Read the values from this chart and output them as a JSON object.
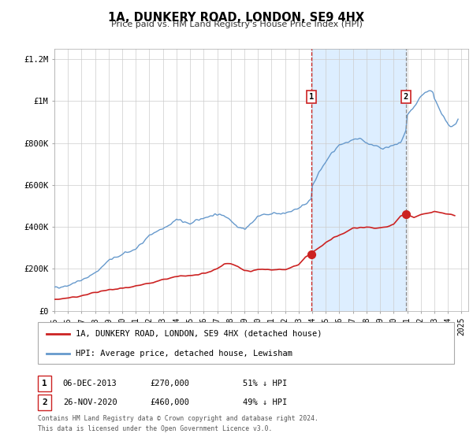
{
  "title": "1A, DUNKERY ROAD, LONDON, SE9 4HX",
  "subtitle": "Price paid vs. HM Land Registry's House Price Index (HPI)",
  "legend_line1": "1A, DUNKERY ROAD, LONDON, SE9 4HX (detached house)",
  "legend_line2": "HPI: Average price, detached house, Lewisham",
  "footnote1": "Contains HM Land Registry data © Crown copyright and database right 2024.",
  "footnote2": "This data is licensed under the Open Government Licence v3.0.",
  "sale1_label": "1",
  "sale1_date": "06-DEC-2013",
  "sale1_price": "£270,000",
  "sale1_hpi": "51% ↓ HPI",
  "sale1_year": 2013.92,
  "sale1_value": 270000,
  "sale2_label": "2",
  "sale2_date": "26-NOV-2020",
  "sale2_price": "£460,000",
  "sale2_hpi": "49% ↓ HPI",
  "sale2_year": 2020.9,
  "sale2_value": 460000,
  "hpi_color": "#6699cc",
  "house_color": "#cc2222",
  "sale_dot_color": "#cc2222",
  "vline1_color": "#cc2222",
  "vline2_color": "#888888",
  "shaded_region_color": "#ddeeff",
  "ylim": [
    0,
    1250000
  ],
  "xlim_start": 1995,
  "xlim_end": 2025.5,
  "yticks": [
    0,
    200000,
    400000,
    600000,
    800000,
    1000000,
    1200000
  ],
  "ytick_labels": [
    "£0",
    "£200K",
    "£400K",
    "£600K",
    "£800K",
    "£1M",
    "£1.2M"
  ],
  "xticks": [
    1995,
    1996,
    1997,
    1998,
    1999,
    2000,
    2001,
    2002,
    2003,
    2004,
    2005,
    2006,
    2007,
    2008,
    2009,
    2010,
    2011,
    2012,
    2013,
    2014,
    2015,
    2016,
    2017,
    2018,
    2019,
    2020,
    2021,
    2022,
    2023,
    2024,
    2025
  ],
  "hpi_knots_x": [
    1995.0,
    1996.0,
    1997.0,
    1998.0,
    1999.0,
    2000.0,
    2001.0,
    2002.0,
    2003.0,
    2004.0,
    2005.0,
    2006.0,
    2007.0,
    2007.5,
    2008.0,
    2008.5,
    2009.0,
    2009.5,
    2010.0,
    2011.0,
    2012.0,
    2013.0,
    2013.92,
    2014.0,
    2014.5,
    2015.0,
    2015.5,
    2016.0,
    2016.5,
    2017.0,
    2017.5,
    2018.0,
    2018.5,
    2019.0,
    2019.5,
    2020.0,
    2020.5,
    2020.9,
    2021.0,
    2021.3,
    2021.6,
    2021.9,
    2022.0,
    2022.3,
    2022.6,
    2022.9,
    2023.0,
    2023.3,
    2023.6,
    2024.0,
    2024.3,
    2024.6,
    2024.75
  ],
  "hpi_knots_y": [
    110000,
    122000,
    147000,
    180000,
    240000,
    268000,
    295000,
    360000,
    390000,
    435000,
    415000,
    445000,
    460000,
    455000,
    435000,
    400000,
    390000,
    415000,
    450000,
    465000,
    465000,
    490000,
    530000,
    590000,
    660000,
    710000,
    755000,
    790000,
    800000,
    810000,
    820000,
    800000,
    790000,
    775000,
    780000,
    785000,
    800000,
    855000,
    930000,
    960000,
    980000,
    1010000,
    1020000,
    1040000,
    1045000,
    1040000,
    1010000,
    970000,
    935000,
    885000,
    880000,
    895000,
    910000
  ],
  "house_knots_x": [
    1995.0,
    1996.0,
    1997.0,
    1998.0,
    1999.0,
    2000.0,
    2001.0,
    2002.0,
    2003.0,
    2004.0,
    2005.0,
    2006.0,
    2007.0,
    2007.5,
    2008.0,
    2008.5,
    2009.0,
    2009.5,
    2010.0,
    2011.0,
    2012.0,
    2013.0,
    2013.5,
    2013.92,
    2014.0,
    2014.5,
    2015.0,
    2015.5,
    2016.0,
    2016.5,
    2017.0,
    2018.0,
    2018.5,
    2019.0,
    2019.5,
    2020.0,
    2020.5,
    2020.9,
    2021.0,
    2021.5,
    2022.0,
    2022.5,
    2023.0,
    2023.5,
    2024.0,
    2024.5
  ],
  "house_knots_y": [
    55000,
    60000,
    72000,
    88000,
    100000,
    108000,
    120000,
    130000,
    148000,
    163000,
    168000,
    176000,
    200000,
    225000,
    225000,
    213000,
    193000,
    190000,
    198000,
    195000,
    196000,
    220000,
    255000,
    270000,
    278000,
    300000,
    325000,
    345000,
    360000,
    378000,
    395000,
    400000,
    395000,
    395000,
    400000,
    413000,
    452000,
    460000,
    455000,
    447000,
    458000,
    465000,
    472000,
    468000,
    460000,
    455000
  ]
}
